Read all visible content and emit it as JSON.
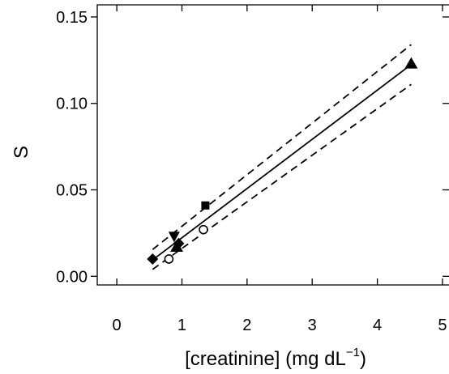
{
  "chart_data": {
    "type": "scatter",
    "title": "",
    "xlabel": "[creatinine] (mg dL",
    "xlabel_superscript": "−1",
    "xlabel_suffix": ")",
    "ylabel": "S",
    "xlim": [
      -0.3,
      5.1
    ],
    "ylim": [
      -0.005,
      0.157
    ],
    "xticks": [
      0,
      1,
      2,
      3,
      4,
      5
    ],
    "xtick_labels": [
      "0",
      "1",
      "2",
      "3",
      "4",
      "5"
    ],
    "yticks": [
      0.0,
      0.05,
      0.1,
      0.15
    ],
    "ytick_labels": [
      "0.00",
      "0.05",
      "0.10",
      "0.15"
    ],
    "grid": false,
    "legend": "none",
    "series": [
      {
        "marker": "diamond-filled",
        "points": [
          [
            0.55,
            0.01
          ],
          [
            0.95,
            0.019
          ]
        ]
      },
      {
        "marker": "circle-open",
        "points": [
          [
            0.8,
            0.01
          ],
          [
            1.33,
            0.027
          ]
        ]
      },
      {
        "marker": "triangle-down-filled",
        "points": [
          [
            0.88,
            0.023
          ]
        ]
      },
      {
        "marker": "triangle-up-filled",
        "points": [
          [
            0.92,
            0.017
          ],
          [
            4.52,
            0.123
          ]
        ]
      },
      {
        "marker": "square-filled",
        "points": [
          [
            1.36,
            0.041
          ]
        ]
      }
    ],
    "fit_line": {
      "style": "solid",
      "x": [
        0.55,
        4.52
      ],
      "y": [
        0.0095,
        0.1225
      ]
    },
    "confidence_upper": {
      "style": "dashed",
      "x": [
        0.55,
        4.52
      ],
      "y": [
        0.0155,
        0.134
      ]
    },
    "confidence_lower": {
      "style": "dashed",
      "x": [
        0.55,
        4.52
      ],
      "y": [
        0.004,
        0.111
      ]
    }
  }
}
